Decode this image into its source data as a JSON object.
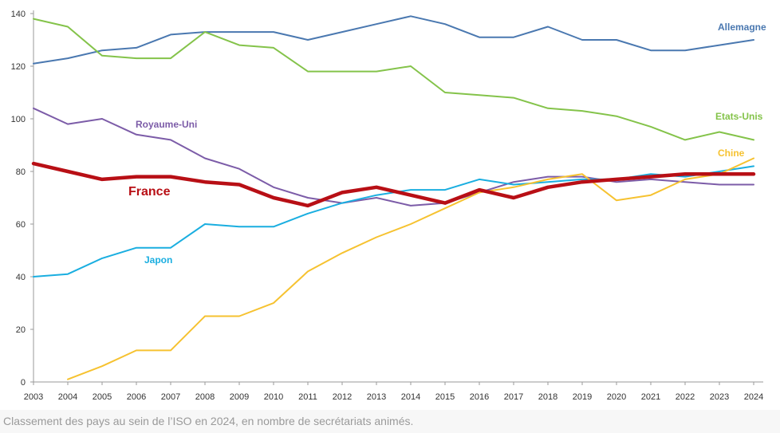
{
  "chart_data": {
    "type": "line",
    "title": "",
    "xlabel": "",
    "ylabel": "",
    "ylim": [
      0,
      140
    ],
    "yticks": [
      0,
      20,
      40,
      60,
      80,
      100,
      120,
      140
    ],
    "grid": false,
    "x": [
      2003,
      2004,
      2005,
      2006,
      2007,
      2008,
      2009,
      2010,
      2011,
      2012,
      2013,
      2014,
      2015,
      2016,
      2017,
      2018,
      2019,
      2020,
      2021,
      2022,
      2023,
      2024
    ],
    "series": [
      {
        "name": "Allemagne",
        "color": "#4a78b0",
        "values": [
          121,
          123,
          126,
          127,
          132,
          133,
          133,
          133,
          130,
          133,
          136,
          139,
          136,
          131,
          131,
          135,
          130,
          130,
          126,
          126,
          128,
          130
        ]
      },
      {
        "name": "Etats-Unis",
        "color": "#84c34a",
        "values": [
          138,
          135,
          124,
          123,
          123,
          133,
          128,
          127,
          118,
          118,
          118,
          120,
          110,
          109,
          108,
          104,
          103,
          101,
          97,
          92,
          95,
          92
        ]
      },
      {
        "name": "Royaume-Uni",
        "color": "#7c5ca8",
        "values": [
          104,
          98,
          100,
          94,
          92,
          85,
          81,
          74,
          70,
          68,
          70,
          67,
          68,
          72,
          76,
          78,
          78,
          76,
          77,
          76,
          75,
          75
        ]
      },
      {
        "name": "Japon",
        "color": "#1aaee0",
        "values": [
          40,
          41,
          47,
          51,
          51,
          60,
          59,
          59,
          64,
          68,
          71,
          73,
          73,
          77,
          75,
          76,
          77,
          77,
          79,
          78,
          80,
          82
        ]
      },
      {
        "name": "Chine",
        "color": "#f6c230",
        "values": [
          null,
          1,
          6,
          12,
          12,
          25,
          25,
          30,
          42,
          49,
          55,
          60,
          66,
          72,
          74,
          77,
          79,
          69,
          71,
          77,
          79,
          85
        ]
      },
      {
        "name": "France",
        "color": "#b80f15",
        "values": [
          83,
          80,
          77,
          78,
          78,
          76,
          75,
          70,
          67,
          72,
          74,
          71,
          68,
          73,
          70,
          74,
          76,
          77,
          78,
          79,
          79,
          79
        ]
      }
    ]
  },
  "caption": "Classement des pays au sein de l’ISO en 2024, en nombre de secrétariats animés."
}
